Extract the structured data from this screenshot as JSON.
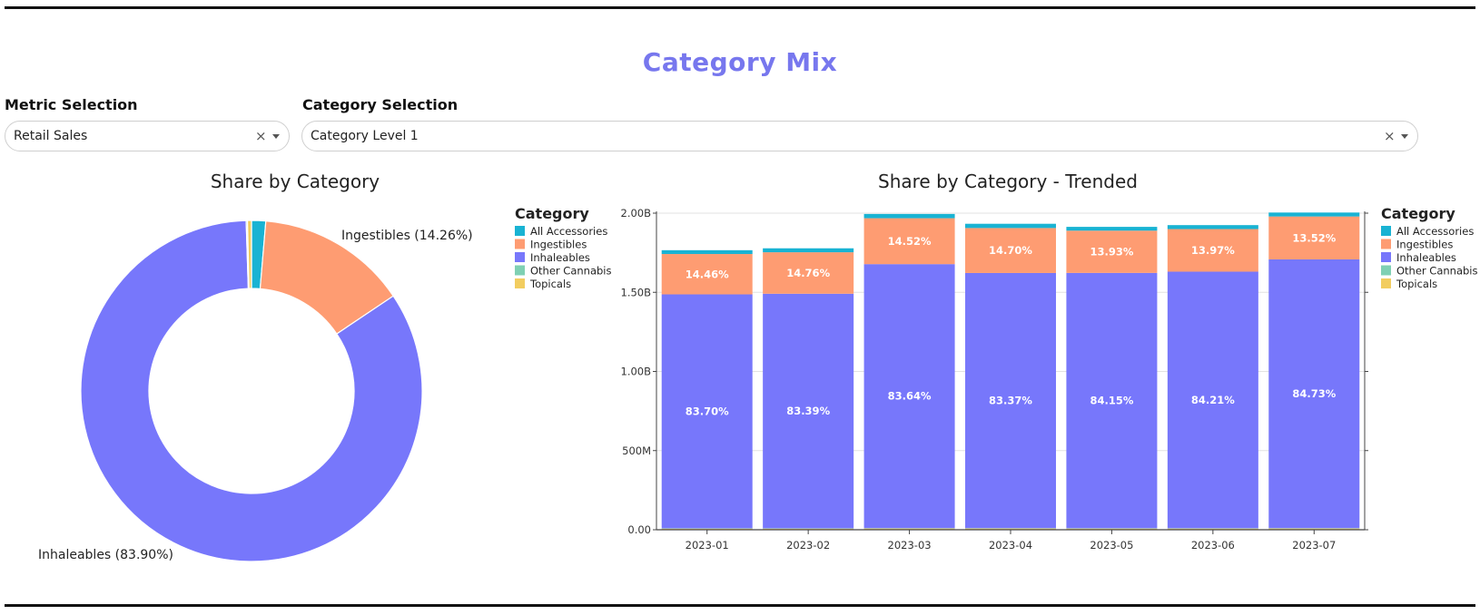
{
  "header": {
    "title": "Category Mix"
  },
  "controls": {
    "metric": {
      "label": "Metric Selection",
      "value": "Retail Sales",
      "clear": "×"
    },
    "category": {
      "label": "Category Selection",
      "value": "Category Level 1",
      "clear": "×"
    }
  },
  "colors": {
    "All Accessories": "#19b3d3",
    "Ingestibles": "#fe9c72",
    "Inhaleables": "#7777fb",
    "Other Cannabis": "#7fd0b3",
    "Topicals": "#f2cd60"
  },
  "chart_data": [
    {
      "type": "pie",
      "title": "Share by Category",
      "hole": true,
      "legend_title": "Category",
      "slices": [
        {
          "name": "All Accessories",
          "value": 1.34
        },
        {
          "name": "Ingestibles",
          "value": 14.26,
          "label": "Ingestibles (14.26%)"
        },
        {
          "name": "Inhaleables",
          "value": 83.9,
          "label": "Inhaleables (83.90%)"
        },
        {
          "name": "Other Cannabis",
          "value": 0.12
        },
        {
          "name": "Topicals",
          "value": 0.38
        }
      ]
    },
    {
      "type": "bar",
      "stacked": true,
      "title": "Share by Category - Trended",
      "legend_title": "Category",
      "legend_position": "right",
      "grid": true,
      "categories": [
        "2023-01",
        "2023-02",
        "2023-03",
        "2023-04",
        "2023-05",
        "2023-06",
        "2023-07"
      ],
      "ylim": [
        0,
        2000000000
      ],
      "yticks": [
        {
          "value": 0,
          "label": "0.00"
        },
        {
          "value": 500000000,
          "label": "500M"
        },
        {
          "value": 1000000000,
          "label": "1.00B"
        },
        {
          "value": 1500000000,
          "label": "1.50B"
        },
        {
          "value": 2000000000,
          "label": "2.00B"
        }
      ],
      "series": [
        {
          "name": "Topicals",
          "values": [
            7000000,
            7000000,
            8000000,
            8000000,
            7500000,
            7500000,
            8000000
          ]
        },
        {
          "name": "Other Cannabis",
          "values": [
            2000000,
            2000000,
            2000000,
            2000000,
            2000000,
            2000000,
            2000000
          ]
        },
        {
          "name": "Inhaleables",
          "values": [
            1478000000,
            1482000000,
            1668000000,
            1612000000,
            1613000000,
            1621000000,
            1698000000
          ],
          "labels": [
            "83.70%",
            "83.39%",
            "83.64%",
            "83.37%",
            "84.15%",
            "84.21%",
            "84.73%"
          ]
        },
        {
          "name": "Ingestibles",
          "values": [
            255000000,
            262000000,
            290000000,
            284000000,
            267000000,
            269000000,
            271000000
          ],
          "labels": [
            "14.46%",
            "14.76%",
            "14.52%",
            "14.70%",
            "13.93%",
            "13.97%",
            "13.52%"
          ]
        },
        {
          "name": "All Accessories",
          "values": [
            24000000,
            25000000,
            27000000,
            27000000,
            24000000,
            25000000,
            25000000
          ]
        }
      ]
    }
  ],
  "legend": {
    "title": "Category",
    "items": [
      "All Accessories",
      "Ingestibles",
      "Inhaleables",
      "Other Cannabis",
      "Topicals"
    ]
  }
}
